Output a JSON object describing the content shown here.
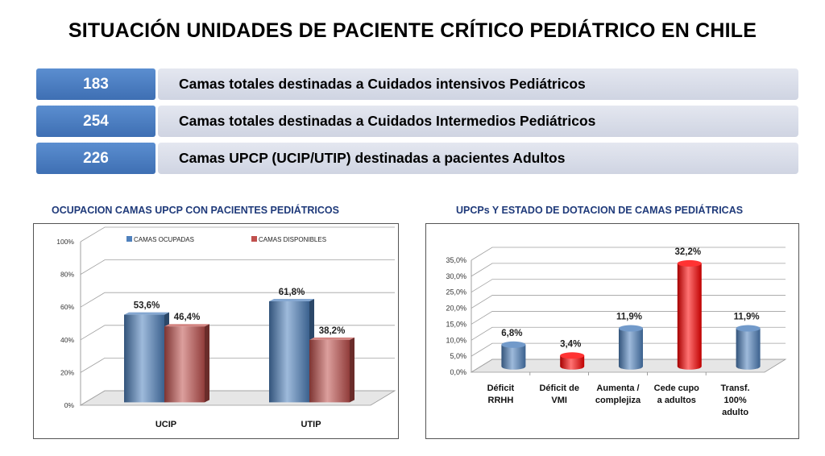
{
  "title": "SITUACIÓN UNIDADES DE PACIENTE CRÍTICO PEDIÁTRICO EN CHILE",
  "summary": [
    {
      "value": "183",
      "label": "Camas totales destinadas a Cuidados intensivos Pediátricos"
    },
    {
      "value": "254",
      "label": "Camas  totales destinadas a Cuidados Intermedios Pediátricos"
    },
    {
      "value": "226",
      "label": "Camas UPCP (UCIP/UTIP) destinadas a pacientes Adultos"
    }
  ],
  "chart_data": [
    {
      "type": "bar",
      "title": "OCUPACION CAMAS UPCP CON PACIENTES PEDIÁTRICOS",
      "categories": [
        "UCIP",
        "UTIP"
      ],
      "series": [
        {
          "name": "CAMAS OCUPADAS",
          "values": [
            53.6,
            61.8
          ],
          "labels": [
            "53,6%",
            "61,8%"
          ],
          "color": "#4f81bd"
        },
        {
          "name": "CAMAS DISPONIBLES",
          "values": [
            46.4,
            38.2
          ],
          "labels": [
            "46,4%",
            "38,2%"
          ],
          "color": "#c0504d"
        }
      ],
      "ylim": [
        0,
        100
      ],
      "yticks": [
        0,
        20,
        40,
        60,
        80,
        100
      ],
      "ytick_labels": [
        "0%",
        "20%",
        "40%",
        "60%",
        "80%",
        "100%"
      ],
      "legend": "top",
      "grid": true
    },
    {
      "type": "bar",
      "title": "UPCPs  Y ESTADO DE DOTACION DE CAMAS PEDIÁTRICAS",
      "categories": [
        "Déficit RRHH",
        "Déficit de VMI",
        "Aumenta / complejiza",
        "Cede cupo a adultos",
        "Transf. 100% adulto"
      ],
      "category_lines": [
        [
          "Déficit",
          "RRHH"
        ],
        [
          "Déficit de",
          "VMI"
        ],
        [
          "Aumenta /",
          "complejiza"
        ],
        [
          "Cede cupo",
          "a adultos"
        ],
        [
          "Transf.",
          "100%",
          "adulto"
        ]
      ],
      "values": [
        6.8,
        3.4,
        11.9,
        32.2,
        11.9
      ],
      "labels": [
        "6,8%",
        "3,4%",
        "11,9%",
        "32,2%",
        "11,9%"
      ],
      "colors": [
        "#4f81bd",
        "#ff0000",
        "#4f81bd",
        "#ff0000",
        "#4f81bd"
      ],
      "ylim": [
        0,
        35
      ],
      "yticks": [
        0,
        5,
        10,
        15,
        20,
        25,
        30,
        35
      ],
      "ytick_labels": [
        "0,0%",
        "5,0%",
        "10,0%",
        "15,0%",
        "20,0%",
        "25,0%",
        "30,0%",
        "35,0%"
      ],
      "grid": true
    }
  ]
}
